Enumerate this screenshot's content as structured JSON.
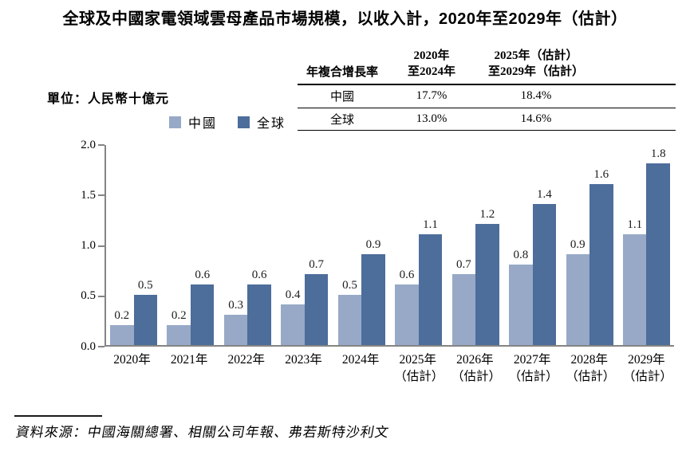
{
  "title": "全球及中國家電領域雲母產品市場規模，以收入計，2020年至2029年（估計）",
  "unit_label": "單位：人民幣十億元",
  "cagr_table": {
    "corner_label": "年複合增長率",
    "col_headers": [
      [
        "2020年",
        "至2024年"
      ],
      [
        "2025年（估計）",
        "至2029年（估計）"
      ]
    ],
    "rows": [
      {
        "label": "中國",
        "values": [
          "17.7%",
          "18.4%"
        ]
      },
      {
        "label": "全球",
        "values": [
          "13.0%",
          "14.6%"
        ]
      }
    ]
  },
  "source_note": "資料來源：中國海關總署、相關公司年報、弗若斯特沙利文",
  "colors": {
    "china": "#97a9c6",
    "global": "#4d6d9b",
    "axis": "#848484"
  },
  "chart_data": {
    "type": "bar",
    "title": "全球及中國家電領域雲母產品市場規模，以收入計，2020年至2029年（估計）",
    "ylabel": "人民幣十億元",
    "xlabel": "",
    "categories": [
      {
        "label": "2020年",
        "sublabel": ""
      },
      {
        "label": "2021年",
        "sublabel": ""
      },
      {
        "label": "2022年",
        "sublabel": ""
      },
      {
        "label": "2023年",
        "sublabel": ""
      },
      {
        "label": "2024年",
        "sublabel": ""
      },
      {
        "label": "2025年",
        "sublabel": "（估計）"
      },
      {
        "label": "2026年",
        "sublabel": "（估計）"
      },
      {
        "label": "2027年",
        "sublabel": "（估計）"
      },
      {
        "label": "2028年",
        "sublabel": "（估計）"
      },
      {
        "label": "2029年",
        "sublabel": "（估計）"
      }
    ],
    "series": [
      {
        "name": "中國",
        "color_key": "china",
        "values": [
          0.2,
          0.2,
          0.3,
          0.4,
          0.5,
          0.6,
          0.7,
          0.8,
          0.9,
          1.1
        ]
      },
      {
        "name": "全球",
        "color_key": "global",
        "values": [
          0.5,
          0.6,
          0.6,
          0.7,
          0.9,
          1.1,
          1.2,
          1.4,
          1.6,
          1.8
        ]
      }
    ],
    "ylim": [
      0,
      2.0
    ],
    "yticks": [
      "0.0",
      "0.5",
      "1.0",
      "1.5",
      "2.0"
    ],
    "grid": false,
    "legend_position": "top",
    "value_labels": true
  }
}
